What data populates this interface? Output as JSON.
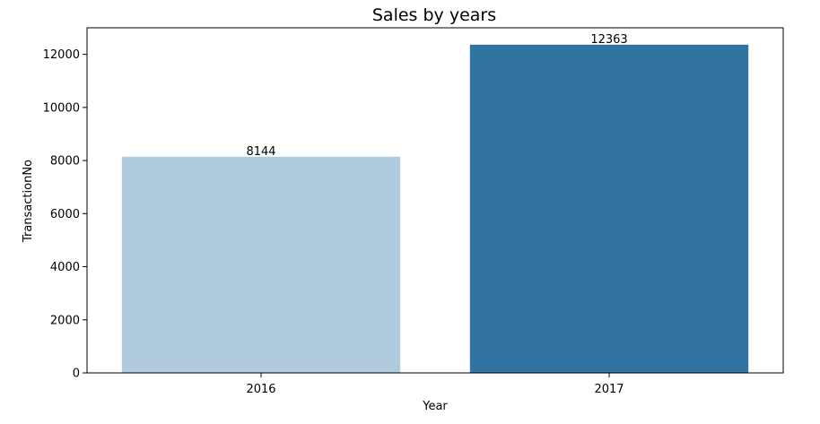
{
  "chart_data": {
    "type": "bar",
    "title": "Sales by years",
    "xlabel": "Year",
    "ylabel": "TransactionNo",
    "categories": [
      "2016",
      "2017"
    ],
    "values": [
      8144,
      12363
    ],
    "data_labels": [
      "8144",
      "12363"
    ],
    "bar_colors": [
      "#afcbdd",
      "#3274a1"
    ],
    "ylim": [
      0,
      13000
    ],
    "yticks": [
      0,
      2000,
      4000,
      6000,
      8000,
      10000,
      12000
    ],
    "ytick_labels": [
      "0",
      "2000",
      "4000",
      "6000",
      "8000",
      "10000",
      "12000"
    ],
    "grid": false,
    "legend": "none"
  }
}
